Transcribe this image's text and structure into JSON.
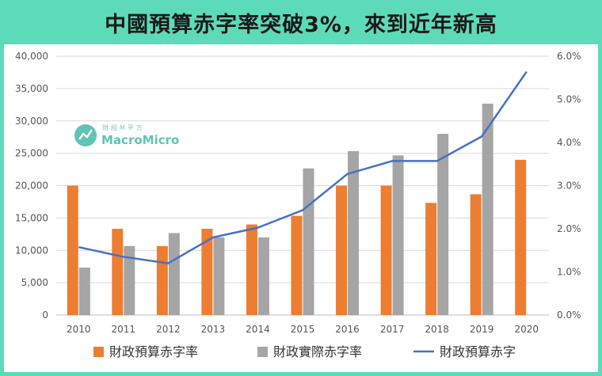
{
  "title": "中國預算赤字率突破3%，來到近年新高",
  "watermark": {
    "brand": "MacroMicro",
    "brand_cn": "財經M平方",
    "icon": "trend-logo-icon"
  },
  "colors": {
    "frame": "#5ddbb8",
    "bar1": "#ed7d31",
    "bar2": "#a5a5a5",
    "line": "#4472c4"
  },
  "chart_data": {
    "type": "bar",
    "categories": [
      "2010",
      "2011",
      "2012",
      "2013",
      "2014",
      "2015",
      "2016",
      "2017",
      "2018",
      "2019",
      "2020"
    ],
    "series": [
      {
        "name": "財政預算赤字率",
        "kind": "bar",
        "axis": "right",
        "values": [
          3.0,
          2.0,
          1.6,
          2.0,
          2.1,
          2.3,
          3.0,
          3.0,
          2.6,
          2.8,
          3.6
        ]
      },
      {
        "name": "財政實際赤字率",
        "kind": "bar",
        "axis": "right",
        "values": [
          1.1,
          1.6,
          1.9,
          1.8,
          1.8,
          3.4,
          3.8,
          3.7,
          4.2,
          4.9,
          null
        ]
      },
      {
        "name": "財政預算赤字",
        "kind": "line",
        "axis": "left",
        "values": [
          10500,
          9000,
          8000,
          12000,
          13500,
          16200,
          21800,
          23800,
          23800,
          27600,
          37600
        ]
      }
    ],
    "yleft": {
      "min": 0,
      "max": 40000,
      "ticks": [
        "0",
        "5,000",
        "10,000",
        "15,000",
        "20,000",
        "25,000",
        "30,000",
        "35,000",
        "40,000"
      ]
    },
    "yright": {
      "min": 0,
      "max": 6,
      "ticks": [
        "0.0%",
        "1.0%",
        "2.0%",
        "3.0%",
        "4.0%",
        "5.0%",
        "6.0%"
      ]
    },
    "grid": true,
    "legend": "bottom"
  }
}
